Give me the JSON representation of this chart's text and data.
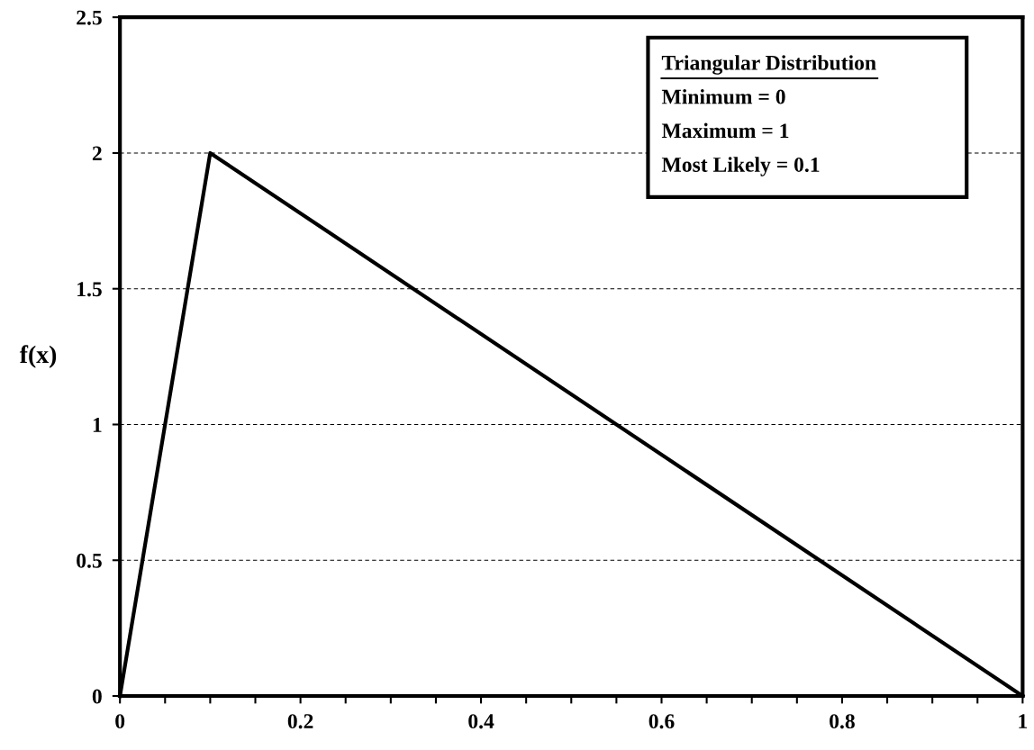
{
  "chart_data": {
    "type": "line",
    "ylabel": "f(x)",
    "x": [
      0,
      0.1,
      1
    ],
    "series": [
      {
        "color": "#000000",
        "values": [
          0,
          2,
          0
        ]
      }
    ],
    "xlim": [
      0,
      1
    ],
    "xticks": [
      0,
      {
        "value": 0.05,
        "label": null
      },
      {
        "value": 0.1,
        "label": null
      },
      {
        "value": 0.15,
        "label": null
      },
      0.2,
      {
        "value": 0.25,
        "label": null
      },
      {
        "value": 0.3,
        "label": null
      },
      {
        "value": 0.35,
        "label": null
      },
      0.4,
      {
        "value": 0.45,
        "label": null
      },
      {
        "value": 0.5,
        "label": null
      },
      {
        "value": 0.55,
        "label": null
      },
      0.6,
      {
        "value": 0.65,
        "label": null
      },
      {
        "value": 0.7,
        "label": null
      },
      {
        "value": 0.75,
        "label": null
      },
      0.8,
      {
        "value": 0.85,
        "label": null
      },
      {
        "value": 0.9,
        "label": null
      },
      {
        "value": 0.95,
        "label": null
      },
      1
    ],
    "ylim": [
      0,
      2.5
    ],
    "yticks": [
      0,
      0.5,
      1,
      1.5,
      2,
      2.5
    ],
    "grid": "y",
    "line_style": "solid",
    "legend": false,
    "annotations": [
      "Triangular Distribution",
      "Minimum = 0",
      "Maximum = 1",
      "Most Likely = 0.1"
    ]
  }
}
